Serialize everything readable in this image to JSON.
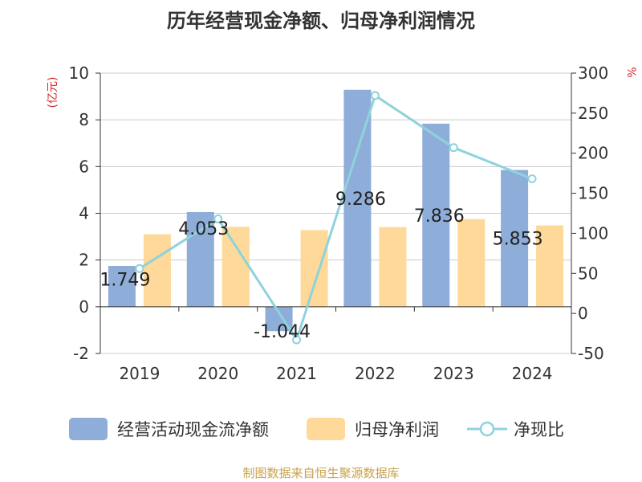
{
  "title": "历年经营现金净额、归母净利润情况",
  "source": "制图数据来自恒生聚源数据库",
  "colors": {
    "cash": "#8eadd9",
    "profit": "#fed999",
    "ratio": "#8ed3dc",
    "axis": "#333333",
    "grid": "#cccccc"
  },
  "chart_data": {
    "type": "bar",
    "title": "历年经营现金净额、归母净利润情况",
    "categories": [
      "2019",
      "2020",
      "2021",
      "2022",
      "2023",
      "2024"
    ],
    "y_left": {
      "unit": "(亿元)",
      "range": [
        -2,
        10
      ],
      "ticks": [
        "10",
        "8",
        "6",
        "4",
        "2",
        "0",
        "-2"
      ]
    },
    "y_right": {
      "unit": "%",
      "range": [
        -50,
        300
      ],
      "ticks": [
        "300",
        "250",
        "200",
        "150",
        "100",
        "50",
        "0",
        "-50"
      ]
    },
    "series": [
      {
        "name": "经营活动现金流净额",
        "axis": "left",
        "type": "bar",
        "values": [
          1.749,
          4.053,
          -1.044,
          9.286,
          7.836,
          5.853
        ],
        "labels": [
          "1.749",
          "4.053",
          "-1.044",
          "9.286",
          "7.836",
          "5.853"
        ]
      },
      {
        "name": "归母净利润",
        "axis": "left",
        "type": "bar",
        "values": [
          3.1,
          3.42,
          3.28,
          3.41,
          3.75,
          3.48
        ]
      },
      {
        "name": "净现比",
        "axis": "right",
        "type": "line",
        "values": [
          56,
          118,
          -33,
          272,
          207,
          168
        ]
      }
    ],
    "grid": true,
    "legend": "bottom"
  }
}
